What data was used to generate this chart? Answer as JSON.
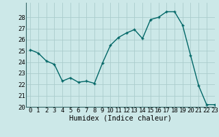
{
  "x": [
    0,
    1,
    2,
    3,
    4,
    5,
    6,
    7,
    8,
    9,
    10,
    11,
    12,
    13,
    14,
    15,
    16,
    17,
    18,
    19,
    20,
    21,
    22,
    23
  ],
  "y": [
    25.1,
    24.8,
    24.1,
    23.8,
    22.3,
    22.6,
    22.2,
    22.3,
    22.1,
    23.9,
    25.5,
    26.2,
    26.6,
    26.9,
    26.1,
    27.8,
    28.0,
    28.5,
    28.5,
    27.3,
    24.6,
    21.9,
    20.2,
    20.2
  ],
  "xlabel": "Humidex (Indice chaleur)",
  "line_color": "#006666",
  "marker": "+",
  "marker_color": "#006666",
  "bg_color": "#cce8e8",
  "grid_color": "#aacccc",
  "ylim": [
    20,
    29
  ],
  "xlim": [
    -0.5,
    23
  ],
  "yticks": [
    20,
    21,
    22,
    23,
    24,
    25,
    26,
    27,
    28
  ],
  "xticks": [
    0,
    1,
    2,
    3,
    4,
    5,
    6,
    7,
    8,
    9,
    10,
    11,
    12,
    13,
    14,
    15,
    16,
    17,
    18,
    19,
    20,
    21,
    22,
    23
  ],
  "tick_fontsize": 6.5,
  "xlabel_fontsize": 7.5,
  "linewidth": 1.0,
  "markersize": 3.5
}
